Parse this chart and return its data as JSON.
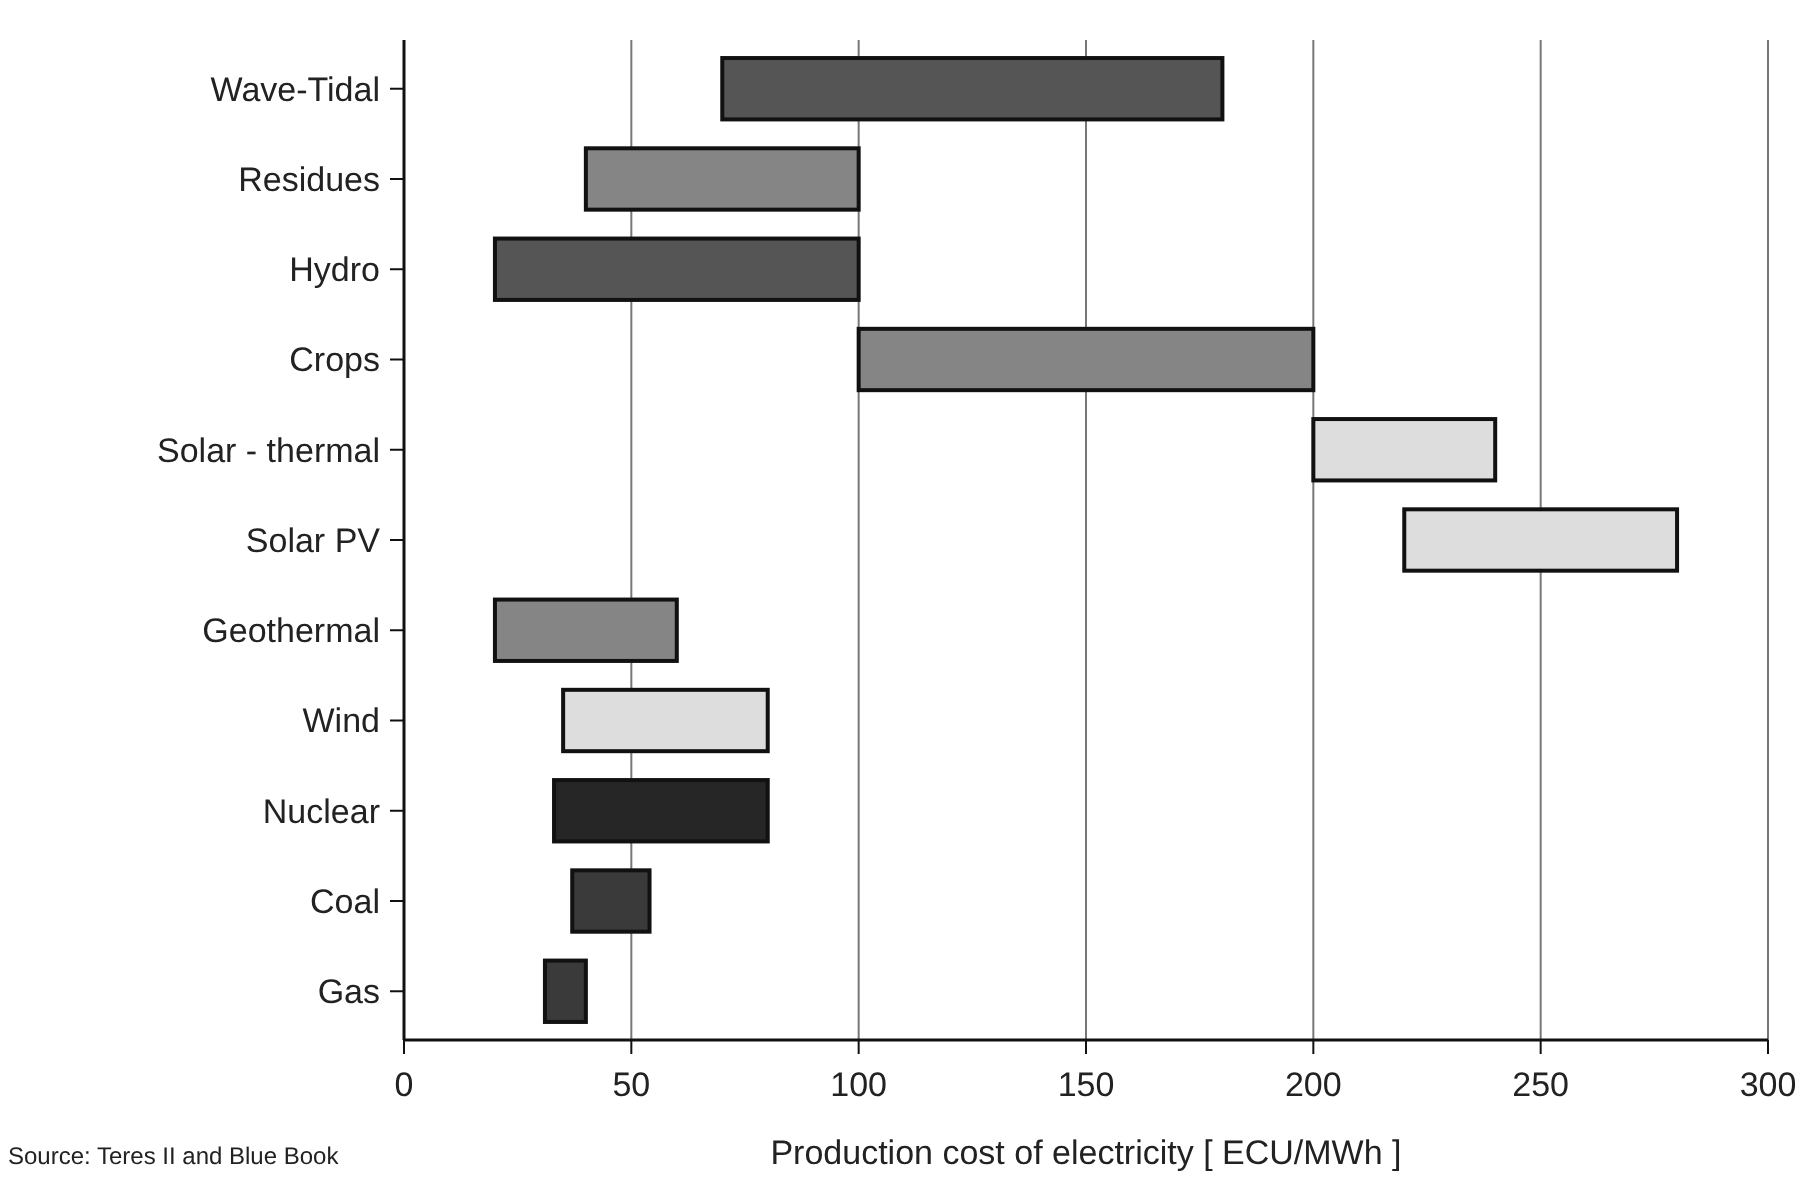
{
  "chart_data": {
    "type": "bar",
    "orientation": "horizontal",
    "xlabel": "Production cost of electricity  [ ECU/MWh ]",
    "categories": [
      "Wave-Tidal",
      "Residues",
      "Hydro",
      "Crops",
      "Solar - thermal",
      "Solar PV",
      "Geothermal",
      "Wind",
      "Nuclear",
      "Coal",
      "Gas"
    ],
    "base": [
      70,
      40,
      20,
      100,
      200,
      220,
      20,
      35,
      33,
      37,
      31
    ],
    "values": [
      110,
      60,
      80,
      100,
      40,
      60,
      40,
      45,
      47,
      17,
      9
    ],
    "colors": [
      "#555555",
      "#858585",
      "#555555",
      "#858585",
      "#dddddd",
      "#dddddd",
      "#858585",
      "#dddddd",
      "#262626",
      "#3a3a3a",
      "#3a3a3a"
    ],
    "xlim": [
      0,
      300
    ],
    "xticks": [
      0,
      50,
      100,
      150,
      200,
      250,
      300
    ],
    "grid": "x",
    "annotations": [
      "Source: Teres II and Blue Book"
    ]
  }
}
